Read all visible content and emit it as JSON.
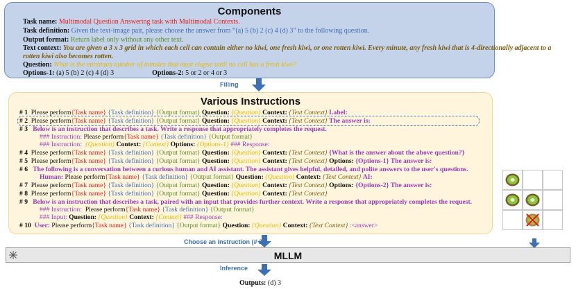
{
  "components": {
    "title": "Components",
    "task_name_label": "Task name:",
    "task_name_value": "Multimodal Question Answering task with Multimodal Contexts.",
    "task_def_label": "Task definition:",
    "task_def_value": "Given the text-image pair, please choose the answer from “(a) 5 (b) 2 (c) 4 (d) 3” to the following question.",
    "output_format_label": "Output format:",
    "output_format_value": "Return label only without any other text.",
    "text_context_label": "Text context:",
    "text_context_value_1": "You are given a 3 x 3 grid in which each cell can contain either no kiwi, one fresh kiwi, or one rotten kiwi. Every minute, any fresh kiwi that is 4-directionally adjacent to a",
    "text_context_value_2": "rotten kiwi also becomes rotten.",
    "question_label": "Question:",
    "question_value": "What is the minimum number of minutes that must elapse until no cell has a fresh kiwi?",
    "options1_label": "Options-1:",
    "options1_value": "(a) 5 (b) 2 (c) 4 (d) 3",
    "options2_label": "Options-2:",
    "options2_value": "5 or 2 or 4 or 3"
  },
  "filling_label": "Filling",
  "instructions": {
    "title": "Various Instructions",
    "common": {
      "please": "Please perform",
      "task_name": "{Task name}",
      "task_def": "{Task definition}",
      "output_format": "{Output format}",
      "question_key": "Question:",
      "question_ph": "{Question}",
      "context_key": "Context:",
      "text_context_ph": "{Text Context}",
      "context_ph": "{Context}",
      "options_key": "Options:",
      "options1_ph": "{Options-1}",
      "options1_bold": "{Options-1}",
      "options2_bold": "{Options-2}"
    },
    "n1": "# 1",
    "n1_tail": "Label:",
    "n2": "# 2",
    "n2_tail": "The answer is:",
    "n3": "# 3",
    "n3_text": "Below is an instruction that describes a task. Write a response that appropriately completes the request.",
    "n3_instr_hdr": "### Instruction:",
    "n3_instr_hdr2": "### Instruction:",
    "n3_response": "### Response:",
    "n4": "# 4",
    "n4_tail": "{What is the answer about the above question?}",
    "n5": "# 5",
    "n5_tail": "The answer is:",
    "n6": "# 6",
    "n6_text": "The following is a conversation between a curious human and AI assistant. The assistant gives helpful, detailed, and polite answers to the user's questions.",
    "n6_human": "Human:",
    "n6_ai": "AI:",
    "n7": "# 7",
    "n7_tail": "The answer is:",
    "n8": "# 8",
    "n9": "# 9",
    "n9_text": "Below is an instruction that describes a task, paired with an input that provides further context. Write a response that appropriately completes the request.",
    "n9_instr_hdr": "### Instruction:",
    "n9_input_hdr": "### Input:",
    "n9_response": "### Response:",
    "n10": "# 10",
    "n10_user": "User:",
    "n10_tail": ":<answer>"
  },
  "choose_label": "Choose an instruction (# 2)",
  "mllm_label": "MLLM",
  "inference_label": "Inference",
  "outputs_label": "Outputs:",
  "outputs_value": "(d) 3",
  "grid": {
    "rows": [
      [
        "fresh",
        "empty",
        "empty"
      ],
      [
        "fresh",
        "fresh",
        "empty"
      ],
      [
        "empty",
        "rotten",
        "empty"
      ]
    ]
  },
  "colors": {
    "components_bg": "#c5d3ea",
    "instructions_bg": "#fff4dc",
    "arrow": "#3d6fb6",
    "task_name": "#e0201f",
    "task_def": "#3d6fb6",
    "output_format": "#5d8b2b",
    "question": "#e6b800",
    "highlight": "#9b3db8"
  }
}
